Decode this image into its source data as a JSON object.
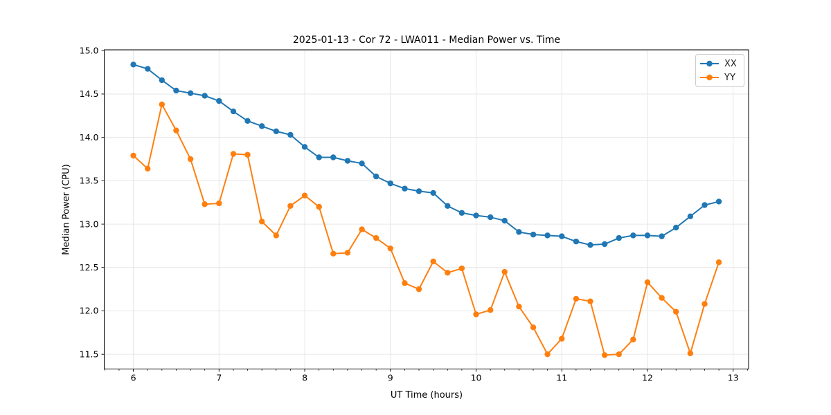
{
  "figure": {
    "background": "#ffffff",
    "text_color": "#000000",
    "grid_color": "#e6e6e6",
    "spine_color": "#000000"
  },
  "chart_data": {
    "type": "line",
    "title": "2025-01-13 - Cor 72 - LWA011 - Median Power vs. Time",
    "xlabel": "UT Time (hours)",
    "ylabel": "Median Power (CPU)",
    "xlim": [
      5.66,
      13.18
    ],
    "ylim": [
      11.33,
      15.01
    ],
    "xticks": [
      6,
      7,
      8,
      9,
      10,
      11,
      12,
      13
    ],
    "yticks": [
      11.5,
      12.0,
      12.5,
      13.0,
      13.5,
      14.0,
      14.5,
      15.0
    ],
    "x_minor_per_unit": 6,
    "grid": true,
    "legend_position": "upper right",
    "x": [
      6.0,
      6.167,
      6.333,
      6.5,
      6.667,
      6.833,
      7.0,
      7.167,
      7.333,
      7.5,
      7.667,
      7.833,
      8.0,
      8.167,
      8.333,
      8.5,
      8.667,
      8.833,
      9.0,
      9.167,
      9.333,
      9.5,
      9.667,
      9.833,
      10.0,
      10.167,
      10.333,
      10.5,
      10.667,
      10.833,
      11.0,
      11.167,
      11.333,
      11.5,
      11.667,
      11.833,
      12.0,
      12.167,
      12.333,
      12.5,
      12.667,
      12.833
    ],
    "series": [
      {
        "name": "XX",
        "color": "#1f77b4",
        "values": [
          14.84,
          14.79,
          14.66,
          14.54,
          14.51,
          14.48,
          14.42,
          14.3,
          14.19,
          14.13,
          14.07,
          14.03,
          13.89,
          13.77,
          13.77,
          13.73,
          13.7,
          13.55,
          13.47,
          13.41,
          13.38,
          13.36,
          13.21,
          13.13,
          13.1,
          13.08,
          13.04,
          12.91,
          12.88,
          12.87,
          12.86,
          12.8,
          12.76,
          12.77,
          12.84,
          12.87,
          12.87,
          12.86,
          12.96,
          13.09,
          13.22,
          13.26
        ]
      },
      {
        "name": "YY",
        "color": "#ff7f0e",
        "values": [
          13.79,
          13.64,
          14.38,
          14.08,
          13.75,
          13.23,
          13.24,
          13.81,
          13.8,
          13.03,
          12.87,
          13.21,
          13.33,
          13.2,
          12.66,
          12.67,
          12.94,
          12.84,
          12.72,
          12.32,
          12.25,
          12.57,
          12.44,
          12.49,
          11.96,
          12.01,
          12.45,
          12.05,
          11.81,
          11.5,
          11.68,
          12.14,
          12.11,
          11.49,
          11.5,
          11.67,
          12.33,
          12.15,
          11.99,
          11.51,
          12.08,
          12.56
        ]
      }
    ]
  }
}
